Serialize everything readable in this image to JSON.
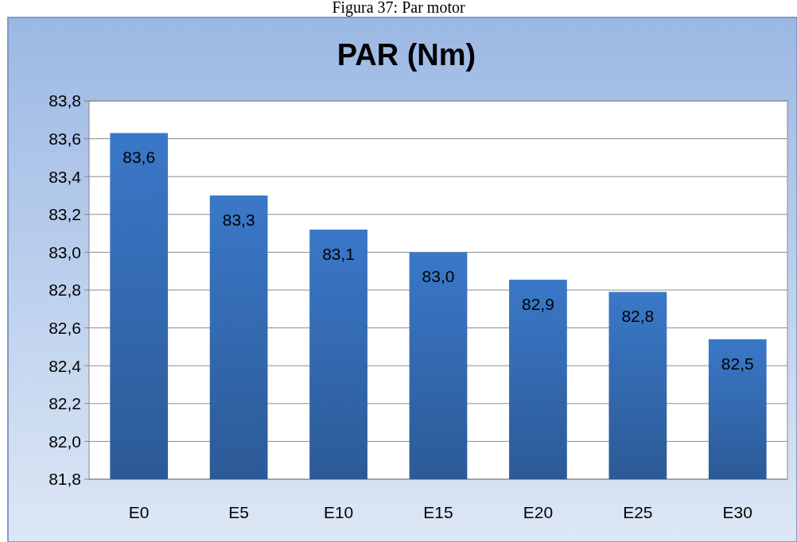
{
  "chart_data": {
    "type": "bar",
    "title": "PAR (Nm)",
    "annotations": [
      "Figura 37: Par motor"
    ],
    "categories": [
      "E0",
      "E5",
      "E10",
      "E15",
      "E20",
      "E25",
      "E30"
    ],
    "values": [
      83.63,
      83.3,
      83.12,
      83.0,
      82.855,
      82.79,
      82.54
    ],
    "value_labels": [
      "83,6",
      "83,3",
      "83,1",
      "83,0",
      "82,9",
      "82,8",
      "82,5"
    ],
    "color": "#3a78c8",
    "ylim": [
      81.8,
      83.8
    ],
    "yticks": [
      {
        "value": 81.8,
        "label": "81,8"
      },
      {
        "value": 82.0,
        "label": "82,0"
      },
      {
        "value": 82.2,
        "label": "82,2"
      },
      {
        "value": 82.4,
        "label": "82,4"
      },
      {
        "value": 82.6,
        "label": "82,6"
      },
      {
        "value": 82.8,
        "label": "82,8"
      },
      {
        "value": 83.0,
        "label": "83,0"
      },
      {
        "value": 83.2,
        "label": "83,2"
      },
      {
        "value": 83.4,
        "label": "83,4"
      },
      {
        "value": 83.6,
        "label": "83,6"
      },
      {
        "value": 83.8,
        "label": "83,8"
      }
    ],
    "grid": "y"
  }
}
